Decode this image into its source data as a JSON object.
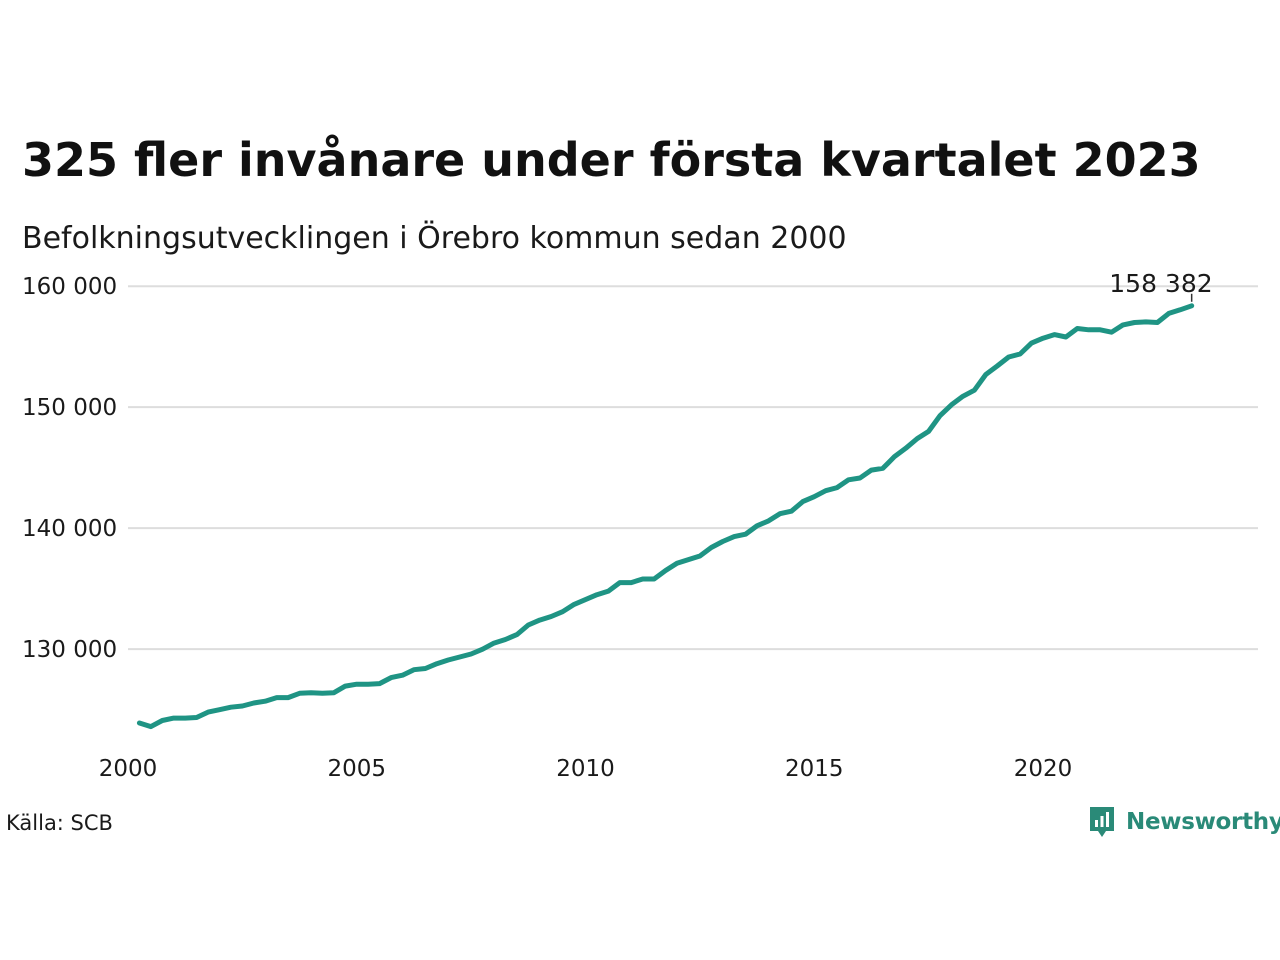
{
  "header": {
    "title": "325 fler invånare under första kvartalet 2023",
    "subtitle": "Befolkningsutvecklingen i Örebro kommun sedan 2000"
  },
  "footer": {
    "source": "Källa: SCB",
    "brand": "Newsworthy",
    "brand_color": "#2a8a78"
  },
  "chart_data": {
    "type": "line",
    "title": "325 fler invånare under första kvartalet 2023",
    "subtitle": "Befolkningsutvecklingen i Örebro kommun sedan 2000",
    "xlabel": "",
    "ylabel": "",
    "x_ticks": [
      "2000",
      "2005",
      "2010",
      "2015",
      "2020"
    ],
    "x_tick_values": [
      2000,
      2005,
      2010,
      2015,
      2020
    ],
    "y_ticks": [
      "130 000",
      "140 000",
      "150 000",
      "160 000"
    ],
    "y_tick_values": [
      130000,
      140000,
      150000,
      160000
    ],
    "xlim": [
      2000,
      2024.7
    ],
    "ylim": [
      121500,
      162000
    ],
    "grid": true,
    "line_color": "#1f9484",
    "end_label": "158 382",
    "series": [
      {
        "x": [
          2000.25,
          2000.5,
          2000.75,
          2001.0,
          2001.25,
          2001.5,
          2001.75,
          2002.0,
          2002.25,
          2002.5,
          2002.75,
          2003.0,
          2003.25,
          2003.5,
          2003.75,
          2004.0,
          2004.25,
          2004.5,
          2004.75,
          2005.0,
          2005.25,
          2005.5,
          2005.75,
          2006.0,
          2006.25,
          2006.5,
          2006.75,
          2007.0,
          2007.25,
          2007.5,
          2007.75,
          2008.0,
          2008.25,
          2008.5,
          2008.75,
          2009.0,
          2009.25,
          2009.5,
          2009.75,
          2010.0,
          2010.25,
          2010.5,
          2010.75,
          2011.0,
          2011.25,
          2011.5,
          2011.75,
          2012.0,
          2012.25,
          2012.5,
          2012.75,
          2013.0,
          2013.25,
          2013.5,
          2013.75,
          2014.0,
          2014.25,
          2014.5,
          2014.75,
          2015.0,
          2015.25,
          2015.5,
          2015.75,
          2016.0,
          2016.25,
          2016.5,
          2016.75,
          2017.0,
          2017.25,
          2017.5,
          2017.75,
          2018.0,
          2018.25,
          2018.5,
          2018.75,
          2019.0,
          2019.25,
          2019.5,
          2019.75,
          2020.0,
          2020.25,
          2020.5,
          2020.75,
          2021.0,
          2021.25,
          2021.5,
          2021.75,
          2022.0,
          2022.25,
          2022.5,
          2022.75,
          2023.0,
          2023.25
        ],
        "values": [
          123900,
          123600,
          124100,
          124300,
          124300,
          124350,
          124800,
          125000,
          125200,
          125300,
          125550,
          125700,
          126000,
          126000,
          126350,
          126400,
          126350,
          126400,
          126950,
          127100,
          127100,
          127150,
          127650,
          127850,
          128300,
          128400,
          128800,
          129100,
          129350,
          129600,
          130000,
          130500,
          130800,
          131200,
          132000,
          132400,
          132700,
          133100,
          133700,
          134100,
          134500,
          134800,
          135500,
          135500,
          135800,
          135800,
          136500,
          137100,
          137400,
          137700,
          138400,
          138900,
          139300,
          139500,
          140200,
          140600,
          141200,
          141400,
          142200,
          142600,
          143100,
          143350,
          144000,
          144150,
          144800,
          144950,
          145900,
          146600,
          147400,
          148000,
          149300,
          150200,
          150900,
          151400,
          152700,
          153400,
          154150,
          154400,
          155300,
          155700,
          156000,
          155800,
          156500,
          156400,
          156400,
          156200,
          156800,
          157000,
          157050,
          157000,
          157750,
          158050,
          158382
        ]
      }
    ]
  }
}
